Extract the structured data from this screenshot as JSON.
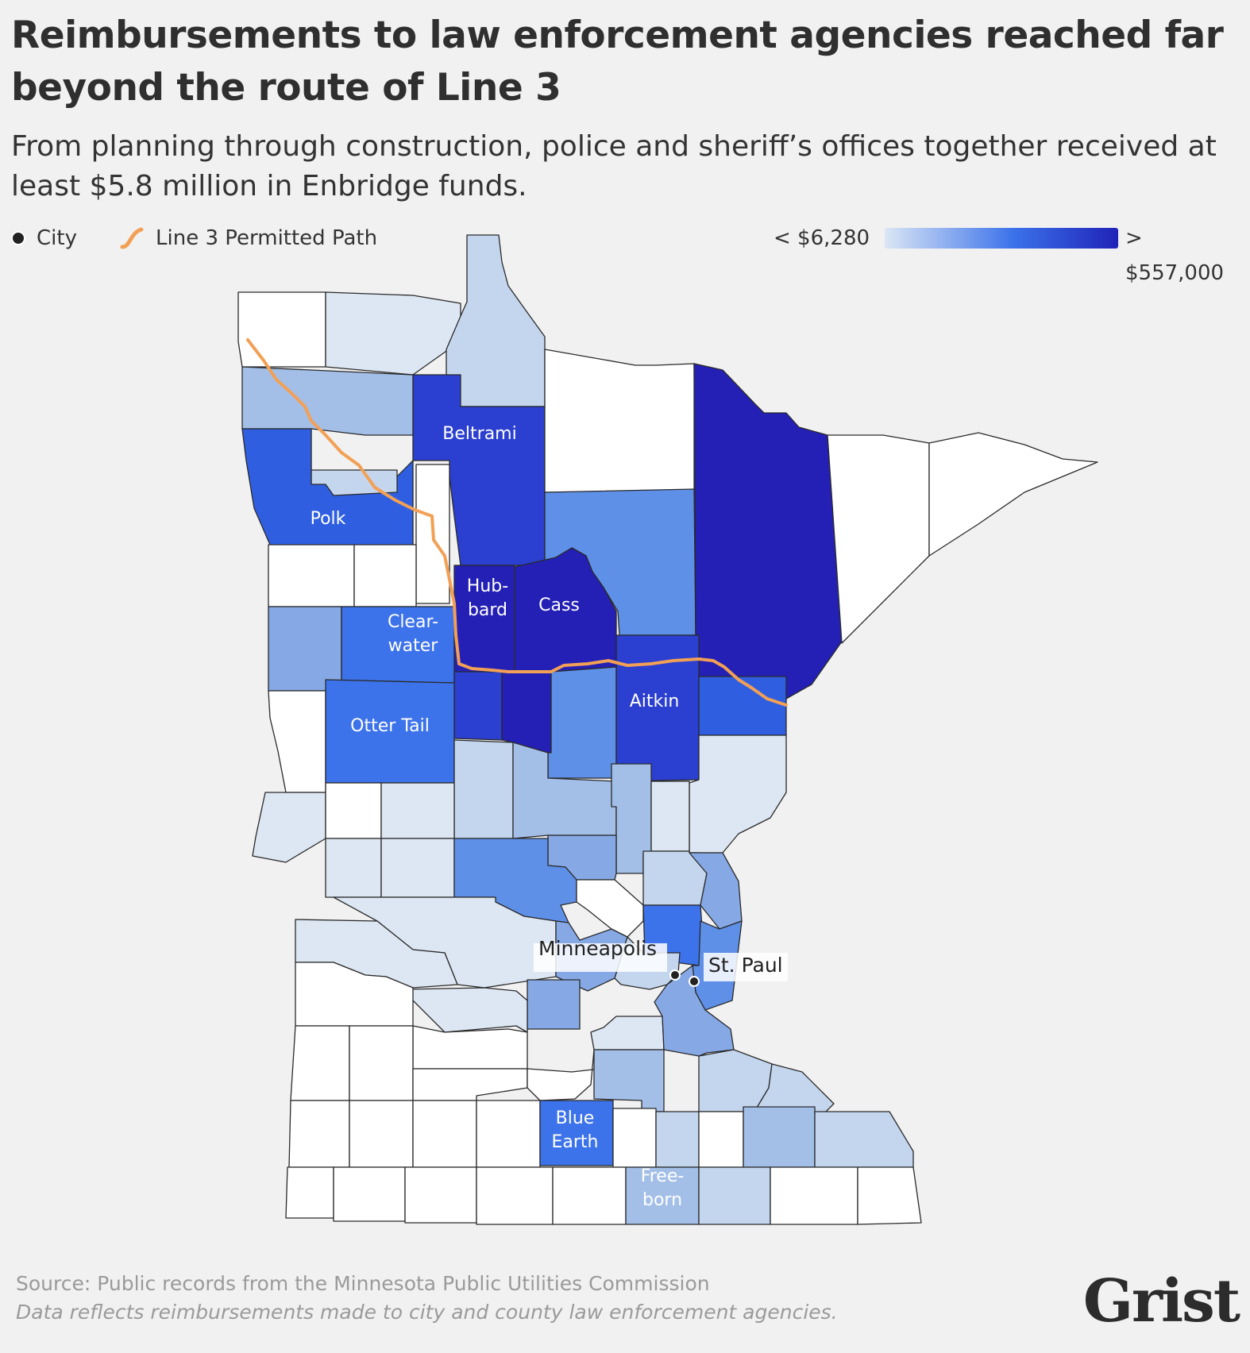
{
  "title": "Reimbursements to law enforcement agencies reached far beyond the route of Line 3",
  "subtitle": "From planning through construction, police and sheriff’s offices together received  at least $5.8 million in Enbridge funds.",
  "legend": {
    "city_label": "City",
    "path_label": "Line 3 Permitted Path",
    "min_label": "< $6,280",
    "max_label": "> $557,000",
    "color_low": "#dbe6f5",
    "color_high": "#1f23b8"
  },
  "colors": {
    "none": "#ffffff",
    "light": "#dde7f3",
    "lightblue": "#c4d6ee",
    "mid": "#a3bfe8",
    "midblue": "#86a9e6",
    "blue": "#5f90e8",
    "bright": "#3c72ea",
    "strong": "#2f5fe0",
    "deep": "#2b3fd0",
    "darkest": "#2420b6",
    "path": "#f2a055",
    "background": "#f1f1f1"
  },
  "county_labels": [
    {
      "name": "Beltrami"
    },
    {
      "name": "Polk"
    },
    {
      "name": "Hub-\nbard"
    },
    {
      "name": "Cass"
    },
    {
      "name": "Clear-\nwater"
    },
    {
      "name": "Aitkin"
    },
    {
      "name": "Otter Tail"
    },
    {
      "name": "Blue\nEarth"
    },
    {
      "name": "Free-\nborn"
    }
  ],
  "cities": [
    {
      "name": "Minneapolis"
    },
    {
      "name": "St. Paul"
    }
  ],
  "footer": {
    "source": "Source: Public records from the Minnesota Public Utilities Commission",
    "note": "Data reflects reimbursements made to city and county law enforcement agencies."
  },
  "brand": "Grist"
}
